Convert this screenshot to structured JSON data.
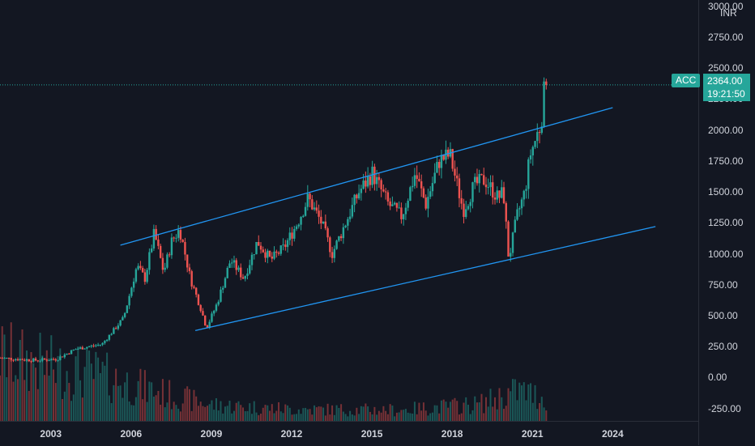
{
  "symbol": "ACC",
  "currency": "INR",
  "last_price": "2364.00",
  "countdown": "19:21:50",
  "colors": {
    "up": "#26a69a",
    "down": "#ef5350",
    "trendline": "#2196f3",
    "background": "#131722"
  },
  "chart_data": {
    "type": "candlestick",
    "title": "",
    "timeframe": "monthly",
    "ylabel": "INR",
    "ylim": [
      -350,
      3050
    ],
    "xlim": [
      2001.1,
      2027.2
    ],
    "y_ticks": [
      "3000.00",
      "2750.00",
      "2500.00",
      "2250.00",
      "2000.00",
      "1750.00",
      "1500.00",
      "1250.00",
      "1000.00",
      "750.00",
      "500.00",
      "250.00",
      "0.00",
      "-250.00"
    ],
    "x_ticks": [
      "2003",
      "2006",
      "2009",
      "2012",
      "2015",
      "2018",
      "2021",
      "2024"
    ],
    "price_path": [
      {
        "t": 2001.1,
        "p": 160
      },
      {
        "t": 2002.5,
        "p": 140
      },
      {
        "t": 2003.3,
        "p": 150
      },
      {
        "t": 2004.0,
        "p": 230
      },
      {
        "t": 2005.0,
        "p": 270
      },
      {
        "t": 2005.8,
        "p": 480
      },
      {
        "t": 2006.3,
        "p": 900
      },
      {
        "t": 2006.6,
        "p": 800
      },
      {
        "t": 2006.95,
        "p": 1170
      },
      {
        "t": 2007.3,
        "p": 850
      },
      {
        "t": 2007.6,
        "p": 1100
      },
      {
        "t": 2007.9,
        "p": 1200
      },
      {
        "t": 2008.3,
        "p": 800
      },
      {
        "t": 2008.7,
        "p": 550
      },
      {
        "t": 2008.9,
        "p": 400
      },
      {
        "t": 2009.3,
        "p": 600
      },
      {
        "t": 2009.8,
        "p": 950
      },
      {
        "t": 2010.3,
        "p": 800
      },
      {
        "t": 2010.8,
        "p": 1100
      },
      {
        "t": 2011.3,
        "p": 950
      },
      {
        "t": 2011.8,
        "p": 1050
      },
      {
        "t": 2012.3,
        "p": 1250
      },
      {
        "t": 2012.7,
        "p": 1450
      },
      {
        "t": 2013.2,
        "p": 1250
      },
      {
        "t": 2013.6,
        "p": 1000
      },
      {
        "t": 2014.2,
        "p": 1300
      },
      {
        "t": 2014.6,
        "p": 1500
      },
      {
        "t": 2015.1,
        "p": 1650
      },
      {
        "t": 2015.7,
        "p": 1400
      },
      {
        "t": 2016.2,
        "p": 1300
      },
      {
        "t": 2016.7,
        "p": 1650
      },
      {
        "t": 2017.1,
        "p": 1400
      },
      {
        "t": 2017.6,
        "p": 1750
      },
      {
        "t": 2018.0,
        "p": 1800
      },
      {
        "t": 2018.5,
        "p": 1350
      },
      {
        "t": 2018.9,
        "p": 1550
      },
      {
        "t": 2019.3,
        "p": 1600
      },
      {
        "t": 2019.8,
        "p": 1450
      },
      {
        "t": 2020.0,
        "p": 1500
      },
      {
        "t": 2020.2,
        "p": 950
      },
      {
        "t": 2020.5,
        "p": 1300
      },
      {
        "t": 2020.8,
        "p": 1500
      },
      {
        "t": 2021.0,
        "p": 1800
      },
      {
        "t": 2021.4,
        "p": 2050
      },
      {
        "t": 2021.55,
        "p": 2364
      }
    ],
    "volume_profile": [
      {
        "t": 2001.1,
        "v": 900
      },
      {
        "t": 2003.5,
        "v": 700
      },
      {
        "t": 2004.5,
        "v": 650
      },
      {
        "t": 2006.0,
        "v": 500
      },
      {
        "t": 2007.5,
        "v": 350
      },
      {
        "t": 2009.0,
        "v": 220
      },
      {
        "t": 2012.0,
        "v": 160
      },
      {
        "t": 2016.0,
        "v": 150
      },
      {
        "t": 2019.0,
        "v": 230
      },
      {
        "t": 2020.5,
        "v": 420
      },
      {
        "t": 2021.55,
        "v": 300
      }
    ],
    "trendlines": [
      {
        "name": "channel-upper",
        "from": {
          "t": 2005.6,
          "p": 1070
        },
        "to": {
          "t": 2024.0,
          "p": 2180
        }
      },
      {
        "name": "channel-lower",
        "from": {
          "t": 2008.4,
          "p": 380
        },
        "to": {
          "t": 2025.6,
          "p": 1220
        }
      }
    ],
    "last_price_line": 2364,
    "grid": false
  }
}
